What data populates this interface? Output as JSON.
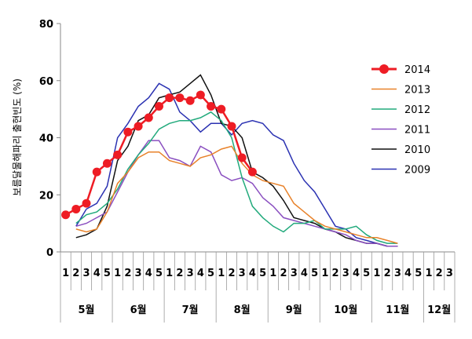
{
  "chart_data": {
    "type": "line",
    "ylabel": "보름달물해파리 출현빈도 (%)",
    "ylim": [
      0,
      80
    ],
    "yticks": [
      0,
      20,
      40,
      60,
      80
    ],
    "grid": false,
    "legend_position": "right",
    "week_labels": [
      "1",
      "2",
      "3",
      "4",
      "5",
      "1",
      "2",
      "3",
      "4",
      "5",
      "1",
      "2",
      "3",
      "4",
      "5",
      "1",
      "2",
      "3",
      "4",
      "5",
      "1",
      "2",
      "3",
      "4",
      "5",
      "1",
      "2",
      "3",
      "4",
      "5",
      "1",
      "2",
      "3",
      "4",
      "5",
      "1",
      "2",
      "3"
    ],
    "months": [
      {
        "label": "5월",
        "weeks": 5
      },
      {
        "label": "6월",
        "weeks": 5
      },
      {
        "label": "7월",
        "weeks": 5
      },
      {
        "label": "8월",
        "weeks": 5
      },
      {
        "label": "9월",
        "weeks": 5
      },
      {
        "label": "10월",
        "weeks": 5
      },
      {
        "label": "11월",
        "weeks": 5
      },
      {
        "label": "12월",
        "weeks": 3
      }
    ],
    "series": [
      {
        "name": "2014",
        "color": "#ee1c24",
        "marker": "circle",
        "start": 0,
        "values": [
          13,
          15,
          17,
          28,
          31,
          34,
          42,
          44,
          47,
          51,
          54,
          54,
          53,
          55,
          51,
          50,
          44,
          33,
          28
        ]
      },
      {
        "name": "2013",
        "color": "#e8822a",
        "start": 1,
        "values": [
          8,
          7,
          8,
          14,
          24,
          28,
          33,
          35,
          35,
          32,
          31,
          30,
          33,
          34,
          36,
          37,
          31,
          27,
          25,
          24,
          23,
          17,
          14,
          11,
          9,
          8,
          7,
          6,
          5,
          5,
          4,
          3
        ]
      },
      {
        "name": "2012",
        "color": "#22aa7c",
        "start": 1,
        "values": [
          10,
          13,
          14,
          17,
          22,
          29,
          34,
          38,
          43,
          45,
          46,
          46,
          47,
          49,
          46,
          40,
          26,
          16,
          12,
          9,
          7,
          10,
          10,
          11,
          8,
          8,
          8,
          9,
          6,
          4,
          3,
          3
        ]
      },
      {
        "name": "2011",
        "color": "#8a4fc0",
        "start": 1,
        "values": [
          9,
          10,
          12,
          14,
          21,
          28,
          34,
          39,
          39,
          33,
          32,
          30,
          37,
          35,
          27,
          25,
          26,
          24,
          19,
          16,
          12,
          11,
          10,
          9,
          8,
          7,
          6,
          4,
          3,
          3,
          2,
          2
        ]
      },
      {
        "name": "2010",
        "color": "#111111",
        "start": 1,
        "values": [
          5,
          6,
          8,
          16,
          32,
          37,
          46,
          48,
          54,
          55,
          56,
          59,
          62,
          55,
          45,
          44,
          40,
          28,
          26,
          23,
          18,
          12,
          11,
          10,
          8,
          7,
          5,
          4,
          3,
          3,
          2,
          2
        ]
      },
      {
        "name": "2009",
        "color": "#2b32b2",
        "start": 1,
        "values": [
          9,
          15,
          17,
          23,
          40,
          45,
          51,
          54,
          59,
          57,
          49,
          46,
          42,
          45,
          45,
          41,
          45,
          46,
          45,
          41,
          39,
          31,
          25,
          21,
          15,
          9,
          8,
          5,
          4,
          3,
          2,
          2
        ]
      }
    ]
  }
}
